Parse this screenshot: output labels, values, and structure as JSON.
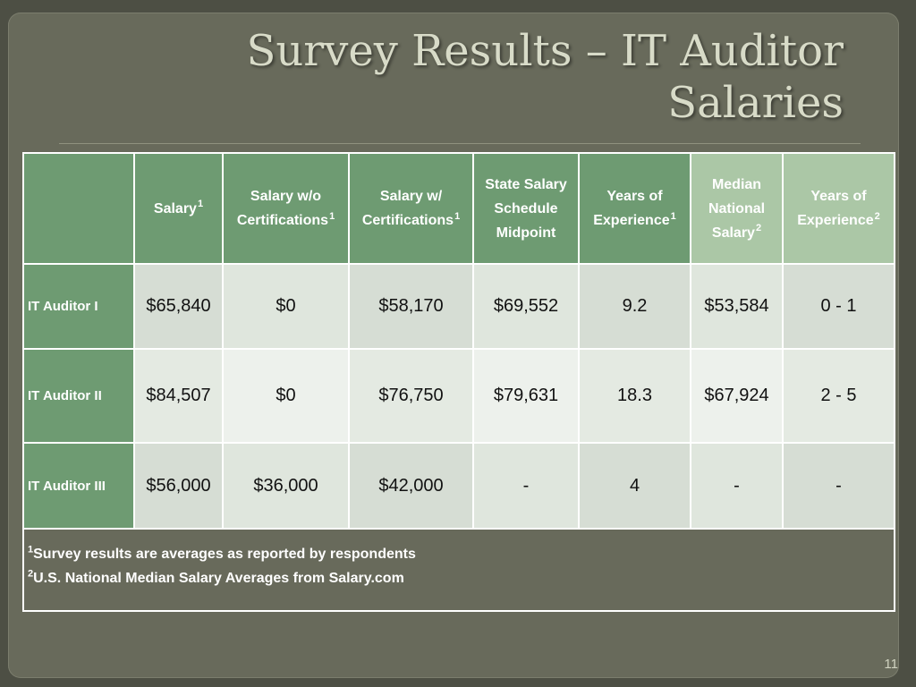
{
  "slide": {
    "title_line1": "Survey Results – IT Auditor",
    "title_line2": "Salaries",
    "page_number": "11"
  },
  "table": {
    "headers": [
      {
        "text": "",
        "fn": ""
      },
      {
        "text": "Salary",
        "fn": "1"
      },
      {
        "text": "Salary w/o Certifications",
        "fn": "1"
      },
      {
        "text": "Salary w/ Certifications",
        "fn": "1"
      },
      {
        "text": "State Salary Schedule Midpoint",
        "fn": ""
      },
      {
        "text": "Years of Experience",
        "fn": "1"
      },
      {
        "text": "Median National Salary",
        "fn": "2"
      },
      {
        "text": "Years of Experience",
        "fn": "2"
      }
    ],
    "rows": [
      {
        "label": "IT Auditor I",
        "cells": [
          "$65,840",
          "$0",
          "$58,170",
          "$69,552",
          "9.2",
          "$53,584",
          "0 - 1"
        ]
      },
      {
        "label": "IT Auditor II",
        "cells": [
          "$84,507",
          "$0",
          "$76,750",
          "$79,631",
          "18.3",
          "$67,924",
          "2 - 5"
        ]
      },
      {
        "label": "IT Auditor III",
        "cells": [
          "$56,000",
          "$36,000",
          "$42,000",
          "-",
          "4",
          "-",
          "-"
        ]
      }
    ],
    "footnotes": [
      {
        "mark": "1",
        "text": "Survey results are averages as reported by respondents"
      },
      {
        "mark": "2",
        "text": "U.S. National Median Salary Averages from Salary.com"
      }
    ]
  }
}
